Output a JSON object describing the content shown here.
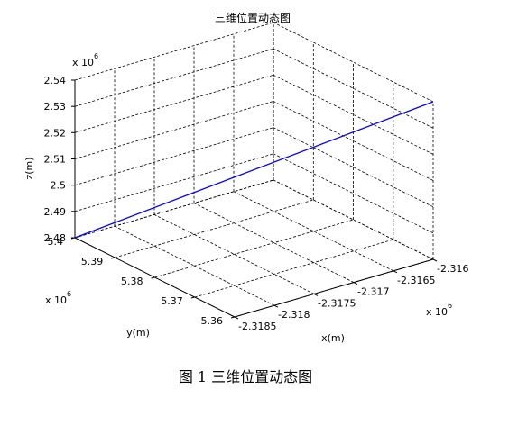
{
  "chart_data": {
    "type": "line",
    "title": "三维位置动态图",
    "caption": "图 1  三维位置动态图",
    "xlabel": "x(m)",
    "ylabel": "y(m)",
    "zlabel": "z(m)",
    "x_exponent": {
      "base": "x 10",
      "power": "6"
    },
    "y_exponent": {
      "base": "x 10",
      "power": "6"
    },
    "z_exponent": {
      "base": "x 10",
      "power": "6"
    },
    "x_ticks": [
      "-2.3185",
      "-2.318",
      "-2.3175",
      "-2.317",
      "-2.3165",
      "-2.316"
    ],
    "y_ticks": [
      "5.36",
      "5.37",
      "5.38",
      "5.39",
      "5.4"
    ],
    "z_ticks": [
      "2.48",
      "2.49",
      "2.5",
      "2.51",
      "2.52",
      "2.53",
      "2.54"
    ],
    "xlim": [
      -2.3185,
      -2.316
    ],
    "ylim": [
      5.36,
      5.4
    ],
    "zlim": [
      2.48,
      2.54
    ],
    "grid": true,
    "series": [
      {
        "color": "#0000ff",
        "x": [
          -2.3185,
          -2.316
        ],
        "y": [
          5.4,
          5.36
        ],
        "z": [
          2.48,
          2.54
        ]
      }
    ]
  }
}
